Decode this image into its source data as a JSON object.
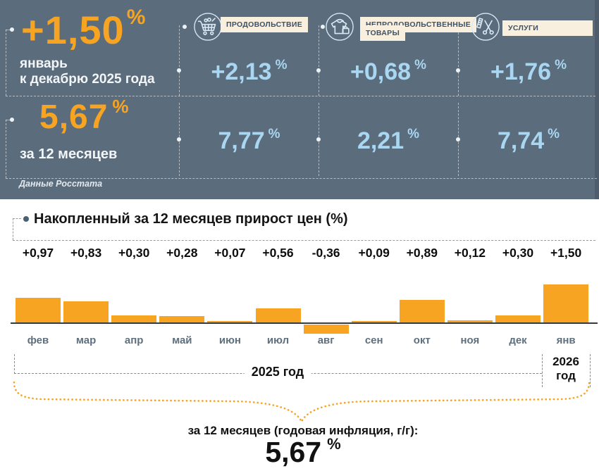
{
  "colors": {
    "banner_bg": "#5B6C7D",
    "accent_orange": "#F7A422",
    "value_blue": "#A9D6F0",
    "label_bg": "#F8EFDE",
    "label_text": "#3E5164"
  },
  "banner": {
    "headline": {
      "value": "+1,50",
      "unit": "%",
      "period_line1": "январь",
      "period_line2": "к декабрю 2025 года"
    },
    "annual": {
      "value": "5,67",
      "unit": "%",
      "label": "за 12 месяцев"
    },
    "source": "Данные Росстата",
    "categories": [
      {
        "label": "ПРОДОВОЛЬСТВИЕ",
        "icon": "cart-icon",
        "month_change": "+2,13",
        "annual_change": "7,77",
        "unit": "%"
      },
      {
        "label": "НЕПРОДОВОЛЬСТВЕННЫЕ ТОВАРЫ",
        "icon": "clothes-bag-icon",
        "month_change": "+0,68",
        "annual_change": "2,21",
        "unit": "%"
      },
      {
        "label": "УСЛУГИ",
        "icon": "scissors-comb-icon",
        "month_change": "+1,76",
        "annual_change": "7,74",
        "unit": "%"
      }
    ]
  },
  "chart_data": {
    "type": "bar",
    "title": "Накопленный за 12 месяцев прирост цен (%)",
    "categories": [
      "фев",
      "мар",
      "апр",
      "май",
      "июн",
      "июл",
      "авг",
      "сен",
      "окт",
      "ноя",
      "дек",
      "янв"
    ],
    "values": [
      0.97,
      0.83,
      0.3,
      0.28,
      0.07,
      0.56,
      -0.36,
      0.09,
      0.89,
      0.12,
      0.3,
      1.5
    ],
    "value_labels": [
      "+0,97",
      "+0,83",
      "+0,30",
      "+0,28",
      "+0,07",
      "+0,56",
      "-0,36",
      "+0,09",
      "+0,89",
      "+0,12",
      "+0,30",
      "+1,50"
    ],
    "bar_color": "#F7A422",
    "baseline": 0,
    "grid": false,
    "year_groups": [
      {
        "label": "2025 год",
        "from": "фев",
        "to": "дек"
      },
      {
        "label": "2026 год",
        "from": "янв",
        "to": "янв"
      }
    ]
  },
  "footer": {
    "year_left": "2025 год",
    "year_right_line1": "2026",
    "year_right_line2": "год",
    "annual_label": "за 12 месяцев (годовая инфляция, г/г):",
    "annual_value": "5,67",
    "unit": "%"
  }
}
